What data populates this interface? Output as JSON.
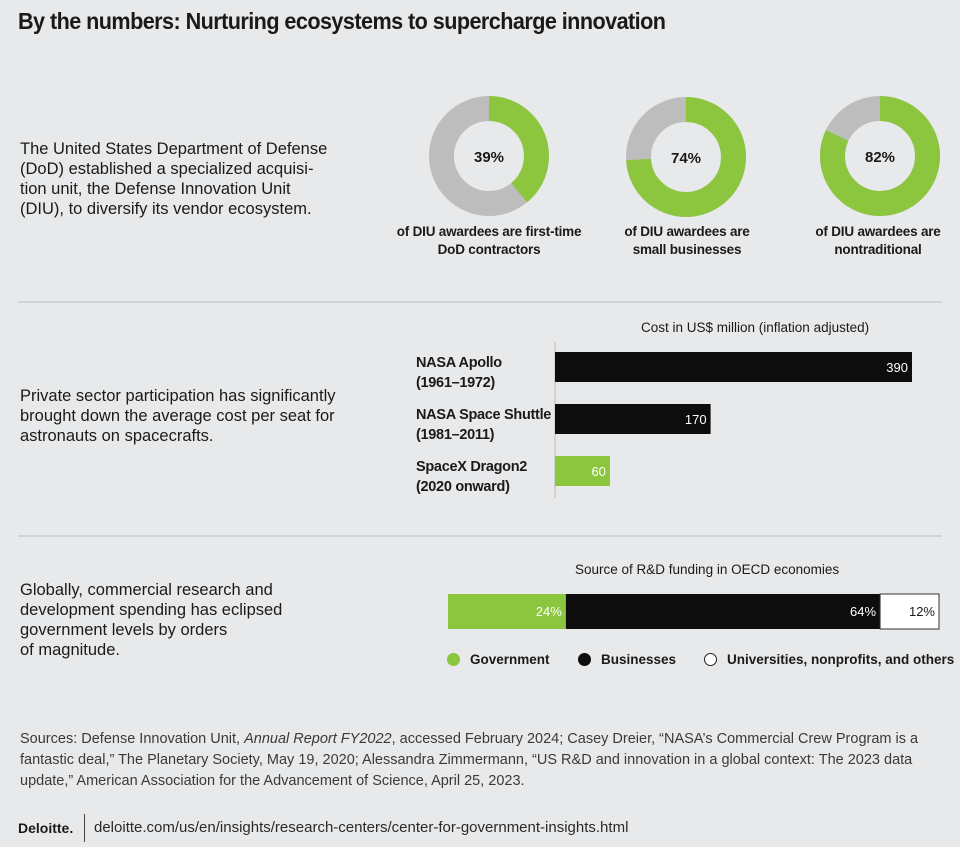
{
  "title": "By the numbers: Nurturing ecosystems to supercharge innovation",
  "sections": {
    "diu": {
      "text_lines": [
        "The United States Department of Defense",
        "(DoD) established a specialized acquisi-",
        "tion unit, the Defense Innovation Unit",
        "(DIU), to diversify its vendor ecosystem."
      ]
    },
    "space": {
      "text_lines": [
        "Private sector participation has significantly",
        "brought down the average cost per seat for",
        "astronauts on spacecrafts."
      ]
    },
    "rnd": {
      "text_lines": [
        "Globally, commercial research and",
        "development spending has eclipsed",
        "government levels by orders",
        "of magnitude."
      ]
    }
  },
  "colors": {
    "green": "#8cc63f",
    "black": "#0d0d0d",
    "gray": "#bdbdbd",
    "white": "#ffffff"
  },
  "chart_data": [
    {
      "type": "pie",
      "title": "DIU awardees",
      "donuts": [
        {
          "label": "39%",
          "value": 39,
          "caption_lines": [
            "of DIU awardees are first-time",
            "DoD contractors"
          ]
        },
        {
          "label": "74%",
          "value": 74,
          "caption_lines": [
            "of DIU awardees are",
            "small businesses"
          ]
        },
        {
          "label": "82%",
          "value": 82,
          "caption_lines": [
            "of DIU awardees are",
            "nontraditional"
          ]
        }
      ]
    },
    {
      "type": "bar",
      "title": "Cost in US$ million (inflation adjusted)",
      "xlim": [
        0,
        400
      ],
      "bars": [
        {
          "name": "NASA Apollo",
          "period": "(1961–1972)",
          "value": 390,
          "label": "390",
          "color": "black"
        },
        {
          "name": "NASA Space Shuttle",
          "period": "(1981–2011)",
          "value": 170,
          "label": "170",
          "color": "black"
        },
        {
          "name": "SpaceX Dragon2",
          "period": "(2020 onward)",
          "value": 60,
          "label": "60",
          "color": "green"
        }
      ]
    },
    {
      "type": "bar",
      "stacked": true,
      "title": "Source of R&D funding in OECD economies",
      "segments": [
        {
          "name": "Government",
          "value": 24,
          "label": "24%",
          "color": "green"
        },
        {
          "name": "Businesses",
          "value": 64,
          "label": "64%",
          "color": "black"
        },
        {
          "name": "Universities, nonprofits, and others",
          "value": 12,
          "label": "12%",
          "color": "white"
        }
      ],
      "legend": [
        "Government",
        "Businesses",
        "Universities, nonprofits, and others"
      ]
    }
  ],
  "sources": {
    "part1": "Sources: Defense Innovation Unit, ",
    "italic": "Annual Report FY2022",
    "part2": ", accessed February 2024; Casey Dreier, “NASA’s Commercial Crew Program is a fantastic deal,” The Planetary Society, May 19, 2020; Alessandra Zimmermann, “US R&D and innovation in a global context: The 2023 data update,” American Association for the Advancement of Science, April 25, 2023."
  },
  "footer": {
    "logo": "Deloitte.",
    "url": "deloitte.com/us/en/insights/research-centers/center-for-government-insights.html"
  }
}
